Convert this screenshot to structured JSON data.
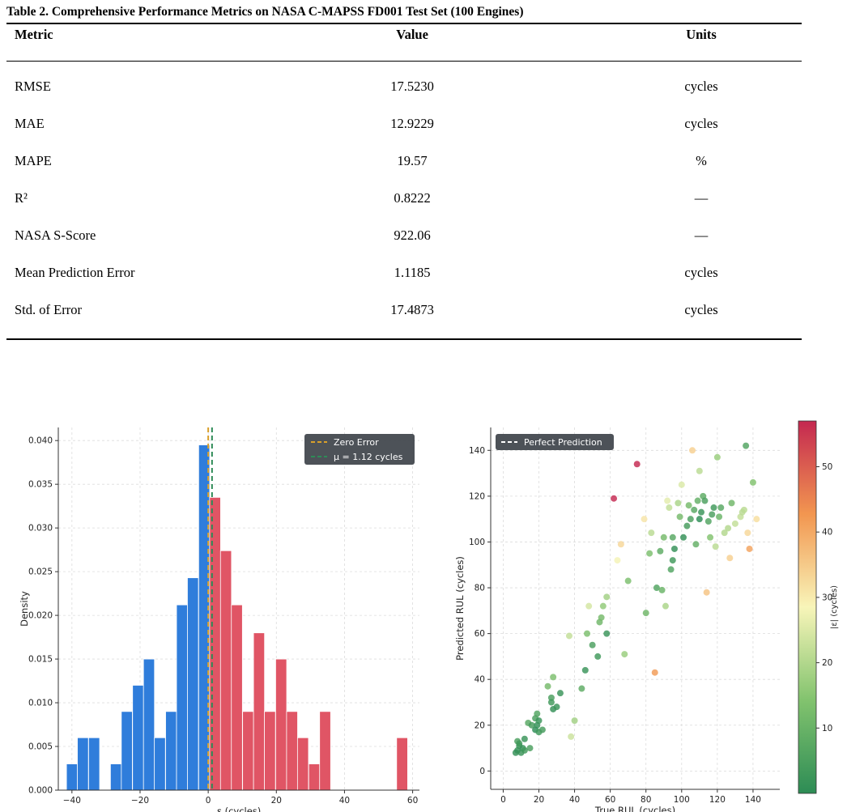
{
  "table": {
    "caption": "Table 2.  Comprehensive Performance Metrics on NASA C-MAPSS  FD001 Test Set (100 Engines)",
    "headers": [
      "Metric",
      "Value",
      "Units"
    ],
    "rows": [
      [
        "RMSE",
        "17.5230",
        "cycles"
      ],
      [
        "MAE",
        "12.9229",
        "cycles"
      ],
      [
        "MAPE",
        "19.57",
        "%"
      ],
      [
        "R²",
        "0.8222",
        "—"
      ],
      [
        "NASA  S-Score",
        "922.06",
        "—"
      ],
      [
        "Mean Prediction Error",
        "1.1185",
        "cycles"
      ],
      [
        "Std. of Error",
        "17.4873",
        "cycles"
      ]
    ]
  },
  "chart_data": [
    {
      "type": "bar",
      "xlabel": "ε (cycles)",
      "ylabel": "Density",
      "xlim": [
        -44,
        62
      ],
      "ylim": [
        0,
        0.0415
      ],
      "xticks": [
        -40,
        -20,
        0,
        20,
        40,
        60
      ],
      "yticks": [
        0.0,
        0.005,
        0.01,
        0.015,
        0.02,
        0.025,
        0.03,
        0.035,
        0.04
      ],
      "grid": true,
      "legend_position": "top-right",
      "bin_width": 3.23,
      "bins": [
        {
          "left": -41.6,
          "value": 0.003,
          "color": "#2f7ddb"
        },
        {
          "left": -38.4,
          "value": 0.006,
          "color": "#2f7ddb"
        },
        {
          "left": -35.1,
          "value": 0.006,
          "color": "#2f7ddb"
        },
        {
          "left": -31.9,
          "value": 0.0,
          "color": "#2f7ddb"
        },
        {
          "left": -28.7,
          "value": 0.003,
          "color": "#2f7ddb"
        },
        {
          "left": -25.5,
          "value": 0.009,
          "color": "#2f7ddb"
        },
        {
          "left": -22.2,
          "value": 0.012,
          "color": "#2f7ddb"
        },
        {
          "left": -19.0,
          "value": 0.015,
          "color": "#2f7ddb"
        },
        {
          "left": -15.8,
          "value": 0.006,
          "color": "#2f7ddb"
        },
        {
          "left": -12.5,
          "value": 0.009,
          "color": "#2f7ddb"
        },
        {
          "left": -9.3,
          "value": 0.0212,
          "color": "#2f7ddb"
        },
        {
          "left": -6.1,
          "value": 0.0243,
          "color": "#2f7ddb"
        },
        {
          "left": -2.8,
          "value": 0.0395,
          "color": "#2f7ddb"
        },
        {
          "left": 0.4,
          "value": 0.0335,
          "color": "#e05565"
        },
        {
          "left": 3.6,
          "value": 0.0274,
          "color": "#e05565"
        },
        {
          "left": 6.8,
          "value": 0.0212,
          "color": "#e05565"
        },
        {
          "left": 10.1,
          "value": 0.009,
          "color": "#e05565"
        },
        {
          "left": 13.3,
          "value": 0.018,
          "color": "#e05565"
        },
        {
          "left": 16.5,
          "value": 0.009,
          "color": "#e05565"
        },
        {
          "left": 19.8,
          "value": 0.015,
          "color": "#e05565"
        },
        {
          "left": 23.0,
          "value": 0.009,
          "color": "#e05565"
        },
        {
          "left": 26.2,
          "value": 0.006,
          "color": "#e05565"
        },
        {
          "left": 29.5,
          "value": 0.003,
          "color": "#e05565"
        },
        {
          "left": 32.7,
          "value": 0.009,
          "color": "#e05565"
        },
        {
          "left": 55.3,
          "value": 0.006,
          "color": "#e05565"
        }
      ],
      "vlines": [
        {
          "x": 0.0,
          "color": "#d9a02a"
        },
        {
          "x": 1.12,
          "color": "#2e8b57"
        }
      ],
      "legend": [
        "Zero Error",
        "μ = 1.12 cycles"
      ]
    },
    {
      "type": "scatter",
      "xlabel": "True RUL (cycles)",
      "ylabel": "Predicted RUL (cycles)",
      "xlim": [
        -7,
        155
      ],
      "ylim": [
        -8,
        150
      ],
      "xticks": [
        0,
        20,
        40,
        60,
        80,
        100,
        120,
        140
      ],
      "yticks": [
        0,
        20,
        40,
        60,
        80,
        100,
        120,
        140
      ],
      "grid": true,
      "legend_position": "top-left",
      "legend": [
        "Perfect Prediction"
      ],
      "colorbar": {
        "label": "|ε| (cycles)",
        "min": 0,
        "max": 57,
        "ticks": [
          10,
          20,
          30,
          40,
          50
        ]
      },
      "points": [
        [
          7,
          8
        ],
        [
          8,
          9
        ],
        [
          9,
          11
        ],
        [
          10,
          8
        ],
        [
          8,
          13
        ],
        [
          11,
          10
        ],
        [
          12,
          9
        ],
        [
          9,
          12
        ],
        [
          14,
          21
        ],
        [
          15,
          10
        ],
        [
          16,
          20
        ],
        [
          18,
          18
        ],
        [
          18,
          23
        ],
        [
          19,
          20
        ],
        [
          19,
          25
        ],
        [
          20,
          17
        ],
        [
          20,
          22
        ],
        [
          25,
          37
        ],
        [
          27,
          32
        ],
        [
          27,
          30
        ],
        [
          28,
          41
        ],
        [
          28,
          27
        ],
        [
          32,
          34
        ],
        [
          38,
          15
        ],
        [
          37,
          59
        ],
        [
          40,
          22
        ],
        [
          46,
          44
        ],
        [
          47,
          60
        ],
        [
          48,
          72
        ],
        [
          50,
          55
        ],
        [
          53,
          50
        ],
        [
          54,
          65
        ],
        [
          55,
          67
        ],
        [
          56,
          72
        ],
        [
          58,
          76
        ],
        [
          58,
          60
        ],
        [
          62,
          119
        ],
        [
          66,
          99
        ],
        [
          68,
          51
        ],
        [
          70,
          83
        ],
        [
          75,
          134
        ],
        [
          79,
          110
        ],
        [
          80,
          69
        ],
        [
          82,
          95
        ],
        [
          83,
          104
        ],
        [
          85,
          43
        ],
        [
          86,
          80
        ],
        [
          88,
          96
        ],
        [
          89,
          79
        ],
        [
          90,
          102
        ],
        [
          91,
          72
        ],
        [
          92,
          118
        ],
        [
          93,
          115
        ],
        [
          94,
          88
        ],
        [
          95,
          92
        ],
        [
          95,
          102
        ],
        [
          96,
          97
        ],
        [
          98,
          117
        ],
        [
          99,
          111
        ],
        [
          100,
          125
        ],
        [
          101,
          102
        ],
        [
          103,
          107
        ],
        [
          104,
          116
        ],
        [
          105,
          110
        ],
        [
          106,
          140
        ],
        [
          107,
          114
        ],
        [
          108,
          99
        ],
        [
          109,
          118
        ],
        [
          110,
          131
        ],
        [
          110,
          110
        ],
        [
          111,
          113
        ],
        [
          112,
          120
        ],
        [
          113,
          118
        ],
        [
          114,
          78
        ],
        [
          115,
          109
        ],
        [
          116,
          102
        ],
        [
          117,
          112
        ],
        [
          118,
          115
        ],
        [
          119,
          98
        ],
        [
          120,
          137
        ],
        [
          121,
          111
        ],
        [
          122,
          115
        ],
        [
          124,
          104
        ],
        [
          126,
          106
        ],
        [
          127,
          93
        ],
        [
          128,
          117
        ],
        [
          130,
          108
        ],
        [
          133,
          111
        ],
        [
          134,
          113
        ],
        [
          135,
          114
        ],
        [
          136,
          142
        ],
        [
          137,
          104
        ],
        [
          138,
          97
        ],
        [
          140,
          126
        ],
        [
          142,
          110
        ],
        [
          64,
          92
        ],
        [
          44,
          36
        ],
        [
          30,
          28
        ],
        [
          22,
          18
        ],
        [
          12,
          14
        ]
      ]
    }
  ]
}
